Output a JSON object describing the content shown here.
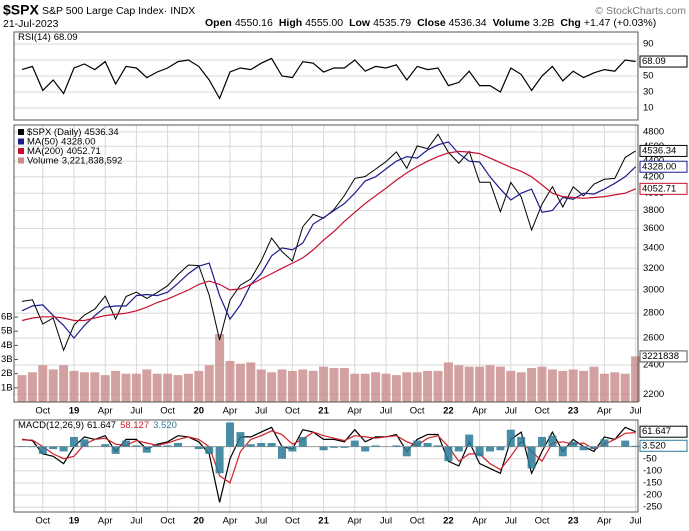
{
  "header": {
    "symbol": "$SPX",
    "name": "S&P 500 Large Cap Index· INDX",
    "credit": "© StockCharts.com",
    "date": "21-Jul-2023",
    "quote": [
      {
        "label": "Open",
        "value": "4550.16"
      },
      {
        "label": "High",
        "value": "4555.00"
      },
      {
        "label": "Low",
        "value": "4535.79"
      },
      {
        "label": "Close",
        "value": "4536.34"
      },
      {
        "label": "Volume",
        "value": "3.2B"
      },
      {
        "label": "Chg",
        "value": "+1.47 (+0.03%)"
      }
    ]
  },
  "chart_data": [
    {
      "type": "line",
      "ylim": [
        -5,
        105
      ],
      "yticks": [
        90,
        70,
        50,
        30,
        10
      ],
      "grid": true,
      "series": [
        {
          "name": "RSI(14)",
          "color": "#000000",
          "values": [
            58,
            62,
            32,
            45,
            28,
            60,
            65,
            58,
            68,
            40,
            62,
            60,
            48,
            55,
            60,
            68,
            70,
            62,
            45,
            22,
            55,
            60,
            58,
            66,
            72,
            50,
            48,
            68,
            66,
            55,
            60,
            60,
            70,
            56,
            62,
            60,
            64,
            45,
            62,
            58,
            60,
            38,
            42,
            56,
            38,
            38,
            30,
            60,
            52,
            32,
            50,
            62,
            44,
            56,
            48,
            54,
            58,
            56,
            70,
            68.09
          ]
        }
      ]
    },
    {
      "type": "line",
      "log_scale": true,
      "grid": true,
      "ylim": [
        2150,
        4900
      ],
      "yticks": [
        4800,
        4600,
        4400,
        4200,
        4000,
        3800,
        3600,
        3400,
        3200,
        3000,
        2800,
        2600,
        2400,
        2200
      ],
      "y2lim": [
        0,
        6.5
      ],
      "y2ticks": [
        {
          "value": 6,
          "label": "6B"
        },
        {
          "value": 5,
          "label": "5B"
        },
        {
          "value": 4,
          "label": "4B"
        },
        {
          "value": 3,
          "label": "3B"
        },
        {
          "value": 2,
          "label": "2B"
        },
        {
          "value": 1,
          "label": "1B"
        }
      ],
      "categories": [
        null,
        null,
        "Oct",
        null,
        null,
        "19",
        null,
        null,
        "Apr",
        null,
        null,
        "Jul",
        null,
        null,
        "Oct",
        null,
        null,
        "20",
        null,
        null,
        "Apr",
        null,
        null,
        "Jul",
        null,
        null,
        "Oct",
        null,
        null,
        "21",
        null,
        null,
        "Apr",
        null,
        null,
        "Jul",
        null,
        null,
        "Oct",
        null,
        null,
        "22",
        null,
        null,
        "Apr",
        null,
        null,
        "Jul",
        null,
        null,
        "Oct",
        null,
        null,
        "23",
        null,
        null,
        "Apr",
        null,
        null,
        "Jul"
      ],
      "series": [
        {
          "name": "$SPX (Daily)",
          "color": "#000000",
          "values": [
            2900,
            2914,
            2711,
            2760,
            2507,
            2704,
            2784,
            2834,
            2946,
            2752,
            2942,
            2980,
            2926,
            2977,
            3038,
            3141,
            3231,
            3226,
            2954,
            2585,
            2912,
            3044,
            3100,
            3271,
            3500,
            3363,
            3270,
            3622,
            3756,
            3714,
            3811,
            3973,
            4181,
            4204,
            4298,
            4395,
            4523,
            4308,
            4605,
            4567,
            4766,
            4516,
            4374,
            4530,
            4132,
            4132,
            3785,
            4130,
            3955,
            3586,
            3872,
            4080,
            3840,
            4077,
            3970,
            4109,
            4169,
            4180,
            4450,
            4536.34
          ]
        },
        {
          "name": "MA(50)",
          "color": "#1c1c8c",
          "values": [
            2820,
            2860,
            2870,
            2780,
            2700,
            2600,
            2700,
            2780,
            2850,
            2860,
            2860,
            2950,
            2960,
            2950,
            2980,
            3060,
            3150,
            3220,
            3250,
            2950,
            2750,
            2870,
            3050,
            3150,
            3320,
            3400,
            3380,
            3450,
            3650,
            3720,
            3800,
            3880,
            4000,
            4150,
            4200,
            4300,
            4400,
            4460,
            4440,
            4550,
            4620,
            4660,
            4500,
            4400,
            4390,
            4200,
            4050,
            3920,
            4000,
            4050,
            3780,
            3800,
            3950,
            3930,
            4000,
            3990,
            4050,
            4120,
            4200,
            4328
          ],
          "value_labels": [
            null,
            null,
            null,
            null,
            null,
            null,
            null,
            null,
            null,
            null,
            null,
            null,
            null,
            null,
            null,
            null,
            null,
            null,
            null,
            null,
            null,
            null,
            null,
            null,
            null,
            null,
            null,
            null,
            null,
            null,
            null,
            null,
            null,
            null,
            null,
            null,
            null,
            null,
            null,
            null,
            null,
            null,
            null,
            null,
            null,
            null,
            null,
            null,
            null,
            null,
            null,
            null,
            null,
            null,
            null,
            null,
            null,
            null,
            null,
            "4328.00"
          ]
        },
        {
          "name": "MA(200)",
          "color": "#c8102e",
          "values": [
            2740,
            2760,
            2770,
            2770,
            2760,
            2740,
            2740,
            2760,
            2780,
            2790,
            2800,
            2820,
            2850,
            2890,
            2920,
            2960,
            3000,
            3050,
            3080,
            3050,
            3000,
            3010,
            3050,
            3100,
            3150,
            3200,
            3250,
            3300,
            3380,
            3480,
            3570,
            3680,
            3780,
            3880,
            3970,
            4060,
            4160,
            4250,
            4330,
            4400,
            4460,
            4510,
            4530,
            4520,
            4500,
            4440,
            4380,
            4320,
            4270,
            4200,
            4100,
            4000,
            3960,
            3950,
            3940,
            3950,
            3960,
            3980,
            4000,
            4052.71
          ]
        },
        {
          "name": "Volume",
          "type": "bar",
          "axis": "y2",
          "color": "#c98a8a",
          "box_label": "3221838",
          "values": [
            1.9,
            2.1,
            2.6,
            2.3,
            2.6,
            2.2,
            2.1,
            2.1,
            1.9,
            2.2,
            2.0,
            2.0,
            2.3,
            2.0,
            2.0,
            1.9,
            2.0,
            2.2,
            2.6,
            4.8,
            2.9,
            2.7,
            2.8,
            2.3,
            2.1,
            2.3,
            2.2,
            2.3,
            2.2,
            2.5,
            2.4,
            2.4,
            2.0,
            2.0,
            2.1,
            2.0,
            1.9,
            2.1,
            2.1,
            2.2,
            2.2,
            2.8,
            2.6,
            2.5,
            2.5,
            2.6,
            2.5,
            2.2,
            2.1,
            2.4,
            2.5,
            2.3,
            2.2,
            2.3,
            2.2,
            2.5,
            2.0,
            2.1,
            2.0,
            3.221838592
          ],
          "value_labels": [
            null,
            null,
            null,
            null,
            null,
            null,
            null,
            null,
            null,
            null,
            null,
            null,
            null,
            null,
            null,
            null,
            null,
            null,
            null,
            null,
            null,
            null,
            null,
            null,
            null,
            null,
            null,
            null,
            null,
            null,
            null,
            null,
            null,
            null,
            null,
            null,
            null,
            null,
            null,
            null,
            null,
            null,
            null,
            null,
            null,
            null,
            null,
            null,
            null,
            null,
            null,
            null,
            null,
            null,
            null,
            null,
            null,
            null,
            null,
            "3,221,838,592"
          ]
        }
      ]
    },
    {
      "type": "line",
      "ylim": [
        -270,
        110
      ],
      "yticks": [
        -50,
        -100,
        -150,
        -200,
        -250
      ],
      "grid": true,
      "categories": [
        null,
        null,
        "Oct",
        null,
        null,
        "19",
        null,
        null,
        "Apr",
        null,
        null,
        "Jul",
        null,
        null,
        "Oct",
        null,
        null,
        "20",
        null,
        null,
        "Apr",
        null,
        null,
        "Jul",
        null,
        null,
        "Oct",
        null,
        null,
        "21",
        null,
        null,
        "Apr",
        null,
        null,
        "Jul",
        null,
        null,
        "Oct",
        null,
        null,
        "22",
        null,
        null,
        "Apr",
        null,
        null,
        "Jul",
        null,
        null,
        "Oct",
        null,
        null,
        "23",
        null,
        null,
        "Apr",
        null,
        null,
        "Jul"
      ],
      "series": [
        {
          "name": "MACD(12,26,9)",
          "color": "#000000",
          "values": [
            30,
            25,
            -30,
            -40,
            -70,
            0,
            40,
            30,
            45,
            -20,
            30,
            30,
            -10,
            10,
            20,
            45,
            40,
            20,
            -30,
            -230,
            -50,
            40,
            40,
            60,
            80,
            0,
            -10,
            70,
            60,
            30,
            30,
            20,
            70,
            20,
            40,
            40,
            50,
            -20,
            30,
            50,
            50,
            -60,
            -80,
            20,
            -70,
            -90,
            -110,
            30,
            60,
            -110,
            -20,
            60,
            -20,
            30,
            0,
            -20,
            40,
            30,
            80,
            61.647
          ]
        },
        {
          "color": "#d0202a",
          "values": [
            28,
            27,
            0,
            -30,
            -50,
            -40,
            10,
            30,
            35,
            10,
            5,
            25,
            15,
            5,
            15,
            30,
            40,
            30,
            0,
            -120,
            -150,
            -20,
            30,
            45,
            65,
            50,
            10,
            30,
            60,
            45,
            35,
            25,
            45,
            40,
            35,
            40,
            45,
            20,
            5,
            35,
            45,
            0,
            -60,
            -30,
            -30,
            -70,
            -95,
            -40,
            20,
            -20,
            -60,
            15,
            20,
            10,
            15,
            -10,
            10,
            30,
            55,
            58.127
          ]
        },
        {
          "type": "bar",
          "color": "#2a7a96",
          "values": [
            2,
            -2,
            -30,
            -10,
            -20,
            40,
            30,
            0,
            10,
            -30,
            25,
            5,
            -25,
            5,
            5,
            15,
            0,
            -10,
            -30,
            -110,
            100,
            60,
            10,
            15,
            15,
            -50,
            -20,
            40,
            0,
            -15,
            -5,
            -5,
            25,
            -20,
            5,
            0,
            5,
            -40,
            25,
            15,
            5,
            -60,
            -20,
            50,
            -40,
            -20,
            -15,
            70,
            40,
            -90,
            40,
            45,
            -40,
            20,
            -15,
            -10,
            30,
            0,
            25,
            3.52
          ],
          "value_labels": [
            null,
            null,
            null,
            null,
            null,
            null,
            null,
            null,
            null,
            null,
            null,
            null,
            null,
            null,
            null,
            null,
            null,
            null,
            null,
            null,
            null,
            null,
            null,
            null,
            null,
            null,
            null,
            null,
            null,
            null,
            null,
            null,
            null,
            null,
            null,
            null,
            null,
            null,
            null,
            null,
            null,
            null,
            null,
            null,
            null,
            null,
            null,
            null,
            null,
            null,
            null,
            null,
            null,
            null,
            null,
            null,
            null,
            null,
            null,
            "3.520"
          ]
        }
      ]
    }
  ]
}
